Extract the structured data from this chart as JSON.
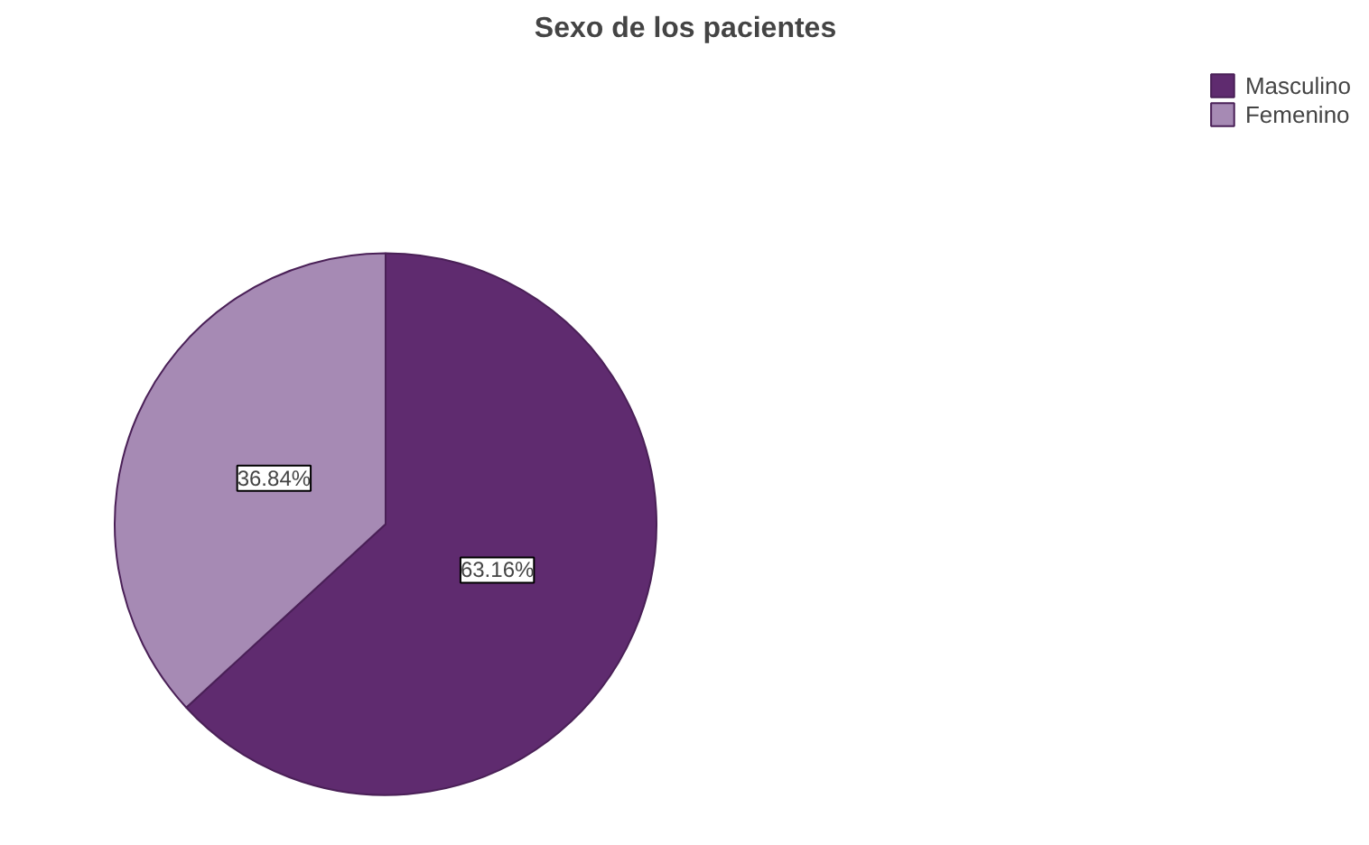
{
  "chart_data": {
    "type": "pie",
    "title": "Sexo de los pacientes",
    "categories": [
      "Masculino",
      "Femenino"
    ],
    "values": [
      63.16,
      36.84
    ],
    "colors": [
      "#5f2b6f",
      "#a68ab4"
    ],
    "value_labels": [
      "63.16%",
      "36.84%"
    ],
    "legend": "top right"
  }
}
